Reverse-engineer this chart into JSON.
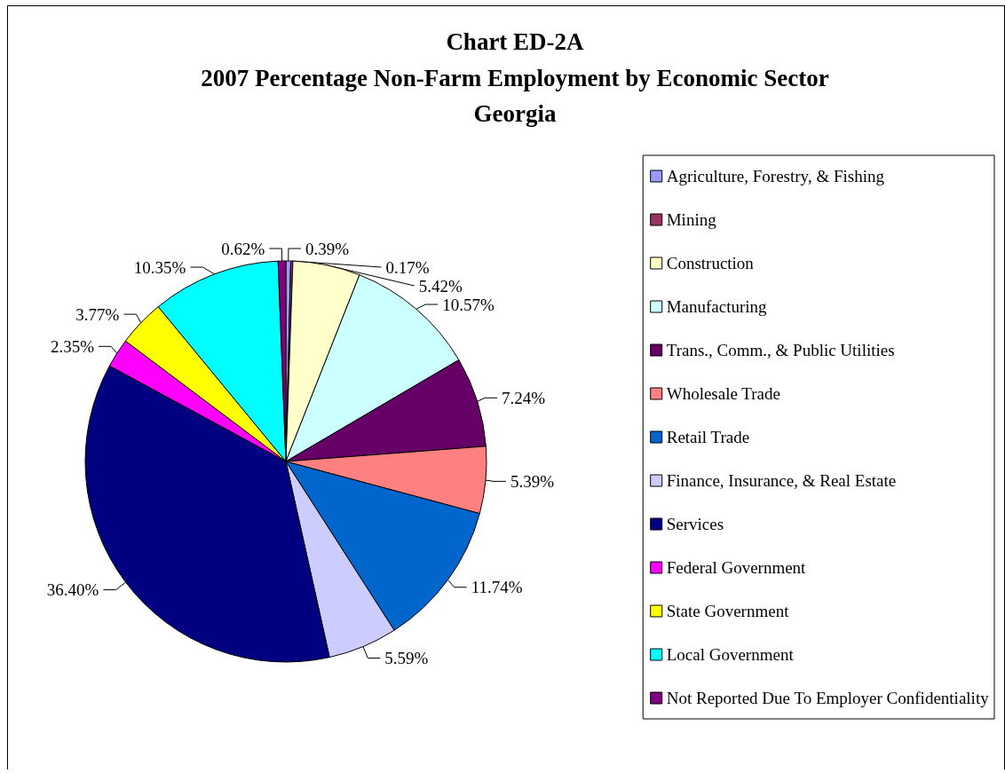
{
  "chart_data": {
    "type": "pie",
    "title": "Chart ED-2A",
    "subtitle": "2007 Percentage Non-Farm Employment by Economic Sector\nGeorgia",
    "categories": [
      "Agriculture, Forestry, & Fishing",
      "Mining",
      "Construction",
      "Manufacturing",
      "Trans., Comm., & Public Utilities",
      "Wholesale Trade",
      "Retail Trade",
      "Finance, Insurance, & Real Estate",
      "Services",
      "Federal Government",
      "State Government",
      "Local Government",
      "Not Reported Due To Employer Confidentiality"
    ],
    "values": [
      0.39,
      0.17,
      5.42,
      10.57,
      7.24,
      5.39,
      11.74,
      5.59,
      36.4,
      2.35,
      3.77,
      10.35,
      0.62
    ],
    "value_labels": [
      "0.39%",
      "0.17%",
      "5.42%",
      "10.57%",
      "7.24%",
      "5.39%",
      "11.74%",
      "5.59%",
      "36.40%",
      "2.35%",
      "3.77%",
      "10.35%",
      "0.62%"
    ],
    "colors": [
      "#9999ff",
      "#993366",
      "#ffffcc",
      "#ccffff",
      "#660066",
      "#ff8080",
      "#0066cc",
      "#ccccff",
      "#000080",
      "#ff00ff",
      "#ffff00",
      "#00ffff",
      "#800080"
    ],
    "legend": "right"
  }
}
